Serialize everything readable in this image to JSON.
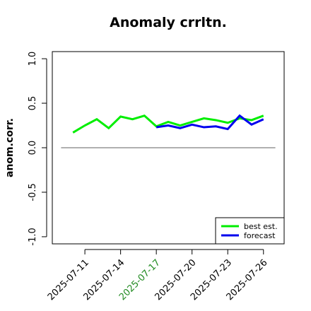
{
  "chart_data": {
    "type": "line",
    "title": "Anomaly crrltn.",
    "y_label": "anom.corr.",
    "xlim": [
      "2025-07-09",
      "2025-07-27"
    ],
    "ylim": [
      -1.08,
      1.08
    ],
    "xticks": [
      "2025-07-11",
      "2025-07-14",
      "2025-07-17",
      "2025-07-20",
      "2025-07-23",
      "2025-07-26"
    ],
    "xtick_label_colors": [
      "#000000",
      "#000000",
      "#228b22",
      "#000000",
      "#000000",
      "#000000"
    ],
    "yticks": [
      {
        "value": -1,
        "label": "-1.0"
      },
      {
        "value": -0.5,
        "label": "-0.5"
      },
      {
        "value": 0,
        "label": "0.0"
      },
      {
        "value": 0.5,
        "label": "0.5"
      },
      {
        "value": 1,
        "label": "1.0"
      }
    ],
    "hline": 0,
    "hline_color": "#808080",
    "legend": "bottom-right",
    "series": [
      {
        "name": "best est.",
        "color": "#00ee00",
        "x": [
          "2025-07-10",
          "2025-07-11",
          "2025-07-12",
          "2025-07-13",
          "2025-07-14",
          "2025-07-15",
          "2025-07-16",
          "2025-07-17",
          "2025-07-18",
          "2025-07-19",
          "2025-07-20",
          "2025-07-21",
          "2025-07-22",
          "2025-07-23",
          "2025-07-24",
          "2025-07-25",
          "2025-07-26"
        ],
        "values": [
          0.17,
          0.25,
          0.32,
          0.22,
          0.35,
          0.32,
          0.36,
          0.24,
          0.29,
          0.25,
          0.29,
          0.33,
          0.31,
          0.28,
          0.33,
          0.31,
          0.36
        ]
      },
      {
        "name": "forecast",
        "color": "#0000ee",
        "x": [
          "2025-07-17",
          "2025-07-18",
          "2025-07-19",
          "2025-07-20",
          "2025-07-21",
          "2025-07-22",
          "2025-07-23",
          "2025-07-24",
          "2025-07-25",
          "2025-07-26"
        ],
        "values": [
          0.23,
          0.25,
          0.22,
          0.26,
          0.23,
          0.24,
          0.21,
          0.36,
          0.26,
          0.32
        ]
      }
    ]
  }
}
